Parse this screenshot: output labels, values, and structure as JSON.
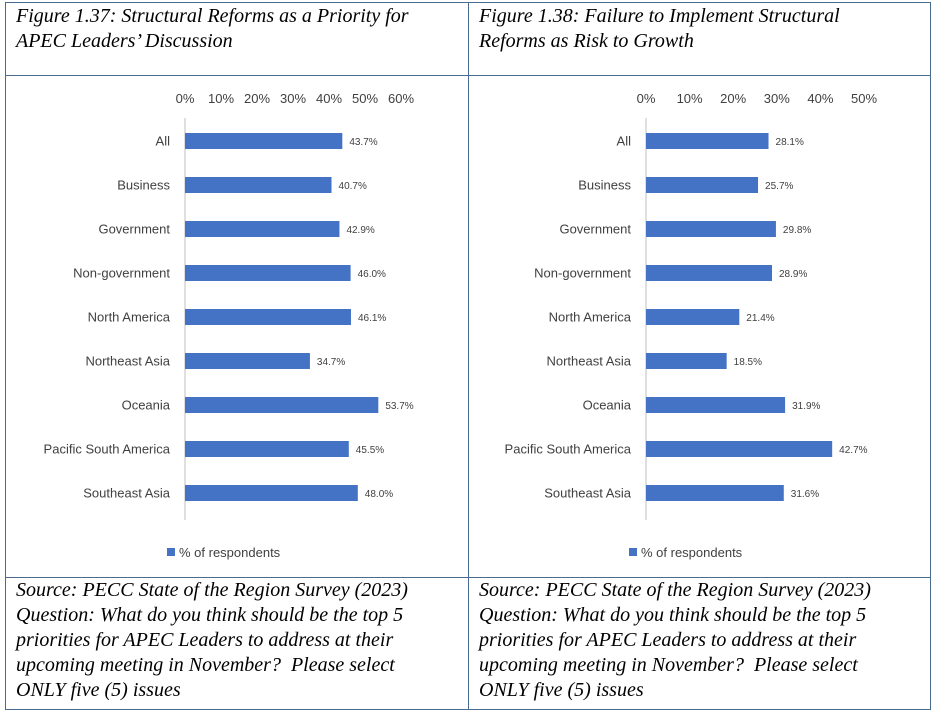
{
  "colors": {
    "bar": "#4472c4",
    "border": "#4a6c8c",
    "axis": "#bfbfbf"
  },
  "left": {
    "title": "Figure 1.37: Structural Reforms as a Priority for\nAPEC Leaders’ Discussion",
    "source": "Source: PECC State of the Region Survey (2023)\nQuestion: What do you think should be the top 5\npriorities for APEC Leaders to address at their\nupcoming meeting in November?  Please select\nONLY five (5) issues"
  },
  "right": {
    "title": "Figure 1.38: Failure to Implement Structural\nReforms as Risk to Growth",
    "source": "Source: PECC State of the Region Survey (2023)\nQuestion: What do you think should be the top 5\npriorities for APEC Leaders to address at their\nupcoming meeting in November?  Please select\nONLY five (5) issues"
  },
  "chart_data": [
    {
      "type": "bar",
      "orientation": "horizontal",
      "title": "Figure 1.37: Structural Reforms as a Priority for APEC Leaders’ Discussion",
      "categories": [
        "All",
        "Business",
        "Government",
        "Non-government",
        "North America",
        "Northeast Asia",
        "Oceania",
        "Pacific South America",
        "Southeast Asia"
      ],
      "series": [
        {
          "name": "% of respondents",
          "values": [
            43.7,
            40.7,
            42.9,
            46.0,
            46.1,
            34.7,
            53.7,
            45.5,
            48.0
          ]
        }
      ],
      "value_labels": [
        "43.7%",
        "40.7%",
        "42.9%",
        "46.0%",
        "46.1%",
        "34.7%",
        "53.7%",
        "45.5%",
        "48.0%"
      ],
      "xlim": [
        0,
        60
      ],
      "ticks": [
        "0%",
        "10%",
        "20%",
        "30%",
        "40%",
        "50%",
        "60%"
      ],
      "axis_position": "top",
      "legend": "bottom",
      "grid": false
    },
    {
      "type": "bar",
      "orientation": "horizontal",
      "title": "Figure 1.38: Failure to Implement Structural Reforms as Risk to Growth",
      "categories": [
        "All",
        "Business",
        "Government",
        "Non-government",
        "North America",
        "Northeast Asia",
        "Oceania",
        "Pacific South America",
        "Southeast Asia"
      ],
      "series": [
        {
          "name": "% of respondents",
          "values": [
            28.1,
            25.7,
            29.8,
            28.9,
            21.4,
            18.5,
            31.9,
            42.7,
            31.6
          ]
        }
      ],
      "value_labels": [
        "28.1%",
        "25.7%",
        "29.8%",
        "28.9%",
        "21.4%",
        "18.5%",
        "31.9%",
        "42.7%",
        "31.6%"
      ],
      "xlim": [
        0,
        50
      ],
      "ticks": [
        "0%",
        "10%",
        "20%",
        "30%",
        "40%",
        "50%"
      ],
      "axis_position": "top",
      "legend": "bottom",
      "grid": false
    }
  ]
}
